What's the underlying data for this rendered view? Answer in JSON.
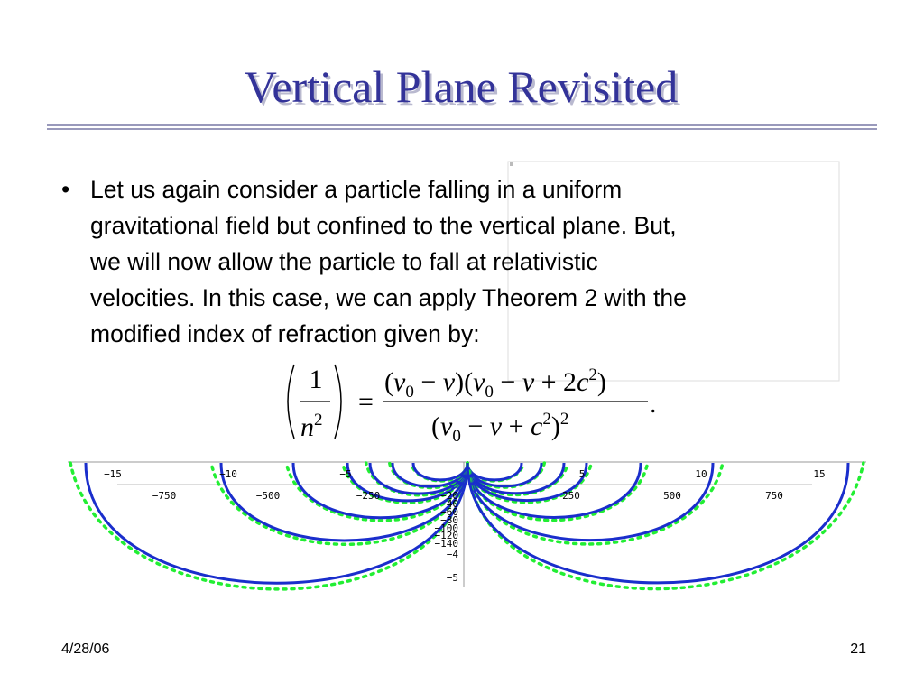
{
  "title": "Vertical Plane Revisited",
  "bullet": {
    "marker": "•",
    "lines": [
      "Let us again consider a particle falling in a uniform",
      "gravitational field but confined to the vertical plane. But,",
      "we will now allow the particle to fall at relativistic",
      "velocities. In this case, we can apply Theorem 2 with the",
      "modified index of refraction given by:"
    ]
  },
  "equation": {
    "lhs_numerator": "1",
    "lhs_denominator": [
      "n",
      "2"
    ],
    "equals": "=",
    "numerator": [
      "(",
      "v",
      "0",
      " − ",
      "v",
      ")(",
      "v",
      "0",
      " − ",
      "v",
      " + 2",
      "c",
      "2",
      ")"
    ],
    "denominator": [
      "(",
      "v",
      "0",
      " − ",
      "v",
      " + ",
      "c",
      "2",
      ")",
      "2"
    ],
    "period": "."
  },
  "plot": {
    "top_axis_labels": [
      "−15",
      "−10",
      "−5",
      "5",
      "10",
      "15"
    ],
    "second_axis_labels": [
      "−750",
      "−500",
      "−250",
      "250",
      "500",
      "750"
    ],
    "vertical_axis_labels": [
      "−20",
      "−40",
      "−60",
      "−80",
      "−100",
      "−120",
      "−140",
      "−4",
      "−5"
    ]
  },
  "footer": {
    "date": "4/28/06",
    "page": "21"
  }
}
